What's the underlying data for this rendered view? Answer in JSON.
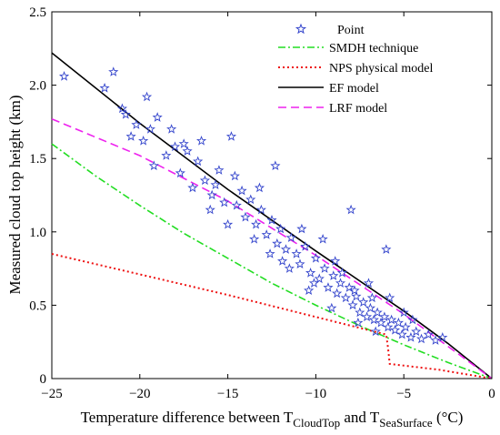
{
  "chart_data": {
    "type": "scatter",
    "title": "",
    "xlabel": {
      "prefix": "Temperature difference between T",
      "sub1": "CloudTop",
      "mid": " and T",
      "sub2": "SeaSurface",
      "suffix": " (°C)"
    },
    "ylabel": "Measured cloud top height (km)",
    "xlim": [
      -25,
      0
    ],
    "ylim": [
      0,
      2.5
    ],
    "xticks": [
      -25,
      -20,
      -15,
      -10,
      -5,
      0
    ],
    "xtick_labels": [
      "−25",
      "−20",
      "−15",
      "−10",
      "−5",
      "0"
    ],
    "yticks": [
      0,
      0.5,
      1.0,
      1.5,
      2.0,
      2.5
    ],
    "ytick_labels": [
      "0",
      "0.5",
      "1.0",
      "1.5",
      "2.0",
      "2.5"
    ],
    "grid": false,
    "legend_position": "top-right",
    "series": [
      {
        "name": "Point",
        "kind": "scatter",
        "marker": "star",
        "color": "#3344cc",
        "points": [
          [
            -24.3,
            2.06
          ],
          [
            -22.0,
            1.98
          ],
          [
            -21.5,
            2.09
          ],
          [
            -20.8,
            1.8
          ],
          [
            -20.5,
            1.65
          ],
          [
            -20.2,
            1.73
          ],
          [
            -19.6,
            1.92
          ],
          [
            -19.8,
            1.62
          ],
          [
            -19.2,
            1.45
          ],
          [
            -19.0,
            1.78
          ],
          [
            -18.5,
            1.52
          ],
          [
            -18.2,
            1.7
          ],
          [
            -17.7,
            1.4
          ],
          [
            -17.3,
            1.55
          ],
          [
            -17.0,
            1.3
          ],
          [
            -16.7,
            1.48
          ],
          [
            -16.3,
            1.35
          ],
          [
            -15.9,
            1.25
          ],
          [
            -15.5,
            1.42
          ],
          [
            -15.2,
            1.2
          ],
          [
            -14.8,
            1.65
          ],
          [
            -14.5,
            1.18
          ],
          [
            -14.2,
            1.28
          ],
          [
            -14.0,
            1.1
          ],
          [
            -13.7,
            1.22
          ],
          [
            -13.4,
            1.05
          ],
          [
            -13.1,
            1.15
          ],
          [
            -12.8,
            0.98
          ],
          [
            -12.5,
            1.08
          ],
          [
            -12.2,
            0.92
          ],
          [
            -12.0,
            1.02
          ],
          [
            -11.7,
            0.88
          ],
          [
            -11.4,
            0.96
          ],
          [
            -11.1,
            0.85
          ],
          [
            -10.9,
            0.78
          ],
          [
            -10.6,
            0.9
          ],
          [
            -10.3,
            0.72
          ],
          [
            -10.0,
            0.82
          ],
          [
            -9.8,
            0.68
          ],
          [
            -9.5,
            0.75
          ],
          [
            -9.3,
            0.62
          ],
          [
            -9.0,
            0.7
          ],
          [
            -8.8,
            0.58
          ],
          [
            -8.6,
            0.65
          ],
          [
            -8.3,
            0.55
          ],
          [
            -8.1,
            0.62
          ],
          [
            -7.9,
            0.5
          ],
          [
            -7.7,
            0.56
          ],
          [
            -7.5,
            0.45
          ],
          [
            -7.3,
            0.52
          ],
          [
            -7.1,
            0.42
          ],
          [
            -6.9,
            0.48
          ],
          [
            -6.7,
            0.4
          ],
          [
            -6.5,
            0.45
          ],
          [
            -6.3,
            0.38
          ],
          [
            -6.1,
            0.42
          ],
          [
            -5.9,
            0.35
          ],
          [
            -5.7,
            0.4
          ],
          [
            -5.5,
            0.33
          ],
          [
            -5.3,
            0.38
          ],
          [
            -5.1,
            0.3
          ],
          [
            -4.9,
            0.35
          ],
          [
            -4.6,
            0.28
          ],
          [
            -4.3,
            0.32
          ],
          [
            -4.0,
            0.27
          ],
          [
            -3.6,
            0.3
          ],
          [
            -3.2,
            0.26
          ],
          [
            -2.8,
            0.28
          ],
          [
            -8.0,
            1.15
          ],
          [
            -6.0,
            0.88
          ],
          [
            -9.6,
            0.95
          ],
          [
            -10.8,
            1.02
          ],
          [
            -12.3,
            1.45
          ],
          [
            -13.2,
            1.3
          ],
          [
            -17.5,
            1.6
          ],
          [
            -16.0,
            1.15
          ],
          [
            -15.0,
            1.05
          ],
          [
            -11.5,
            0.75
          ],
          [
            -7.0,
            0.65
          ],
          [
            -8.5,
            0.72
          ],
          [
            -5.8,
            0.55
          ],
          [
            -6.6,
            0.32
          ],
          [
            -7.6,
            0.38
          ],
          [
            -9.1,
            0.48
          ],
          [
            -10.4,
            0.6
          ],
          [
            -11.9,
            0.8
          ],
          [
            -13.5,
            0.95
          ],
          [
            -18.0,
            1.58
          ],
          [
            -19.4,
            1.7
          ],
          [
            -21.0,
            1.84
          ],
          [
            -14.6,
            1.38
          ],
          [
            -16.5,
            1.62
          ],
          [
            -4.5,
            0.4
          ],
          [
            -5.0,
            0.45
          ],
          [
            -6.8,
            0.55
          ],
          [
            -7.8,
            0.6
          ],
          [
            -8.9,
            0.8
          ],
          [
            -10.1,
            0.65
          ],
          [
            -12.6,
            0.85
          ],
          [
            -15.7,
            1.32
          ]
        ]
      },
      {
        "name": "SMDH technique",
        "kind": "line",
        "style": "dashdot",
        "color": "#22dd22",
        "points": [
          [
            -25,
            1.6
          ],
          [
            -22.5,
            1.38
          ],
          [
            -20,
            1.18
          ],
          [
            -17.5,
            0.99
          ],
          [
            -15,
            0.82
          ],
          [
            -12.5,
            0.65
          ],
          [
            -10,
            0.5
          ],
          [
            -7.5,
            0.36
          ],
          [
            -5,
            0.23
          ],
          [
            -2.5,
            0.11
          ],
          [
            0,
            0.0
          ]
        ]
      },
      {
        "name": "NPS physical model",
        "kind": "line",
        "style": "dotted",
        "color": "#ee1111",
        "points": [
          [
            -25,
            0.85
          ],
          [
            -20,
            0.71
          ],
          [
            -15,
            0.57
          ],
          [
            -10,
            0.42
          ],
          [
            -6,
            0.3
          ],
          [
            -5.9,
            0.21
          ],
          [
            -5.8,
            0.1
          ],
          [
            -3,
            0.06
          ],
          [
            0,
            0.0
          ]
        ]
      },
      {
        "name": "EF model",
        "kind": "line",
        "style": "solid",
        "color": "#000000",
        "points": [
          [
            -25,
            2.22
          ],
          [
            -20,
            1.74
          ],
          [
            -15,
            1.29
          ],
          [
            -10,
            0.87
          ],
          [
            -5,
            0.46
          ],
          [
            -2.5,
            0.24
          ],
          [
            0,
            0.0
          ]
        ]
      },
      {
        "name": "LRF model",
        "kind": "line",
        "style": "dashed",
        "color": "#ee22ee",
        "points": [
          [
            -25,
            1.77
          ],
          [
            -20,
            1.52
          ],
          [
            -15,
            1.21
          ],
          [
            -10,
            0.84
          ],
          [
            -5,
            0.44
          ],
          [
            -2.5,
            0.22
          ],
          [
            0,
            0.0
          ]
        ]
      }
    ]
  }
}
